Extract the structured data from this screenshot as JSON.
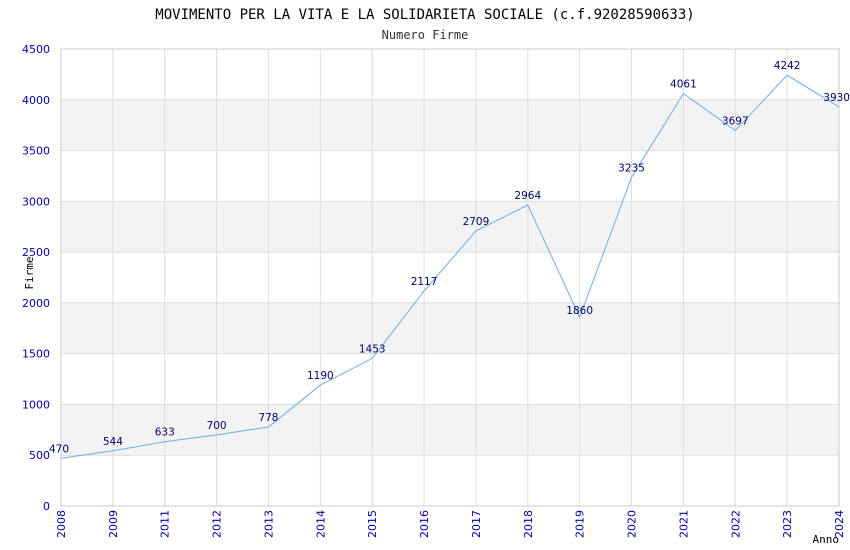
{
  "chart_data": {
    "type": "line",
    "title": "MOVIMENTO PER LA VITA E LA SOLIDARIETA SOCIALE (c.f.92028590633)",
    "subtitle": "Numero Firme",
    "xlabel": "Anno",
    "ylabel": "Firme",
    "x": [
      "2008",
      "2009",
      "2011",
      "2012",
      "2013",
      "2014",
      "2015",
      "2016",
      "2017",
      "2018",
      "2019",
      "2020",
      "2021",
      "2022",
      "2023",
      "2024"
    ],
    "values": [
      470,
      544,
      633,
      700,
      778,
      1190,
      1453,
      2117,
      2709,
      2964,
      1860,
      3235,
      4061,
      3697,
      4242,
      3930
    ],
    "ylim": [
      0,
      4500
    ],
    "yticks": [
      "0",
      "500",
      "1000",
      "1500",
      "2000",
      "2500",
      "3000",
      "3500",
      "4000",
      "4500"
    ],
    "grid": true,
    "colors": {
      "line": "#6aaee8",
      "tick_text": "#0000aa",
      "data_label": "#000066",
      "band_alt": "#f3f3f3",
      "grid": "#dddddd"
    }
  }
}
